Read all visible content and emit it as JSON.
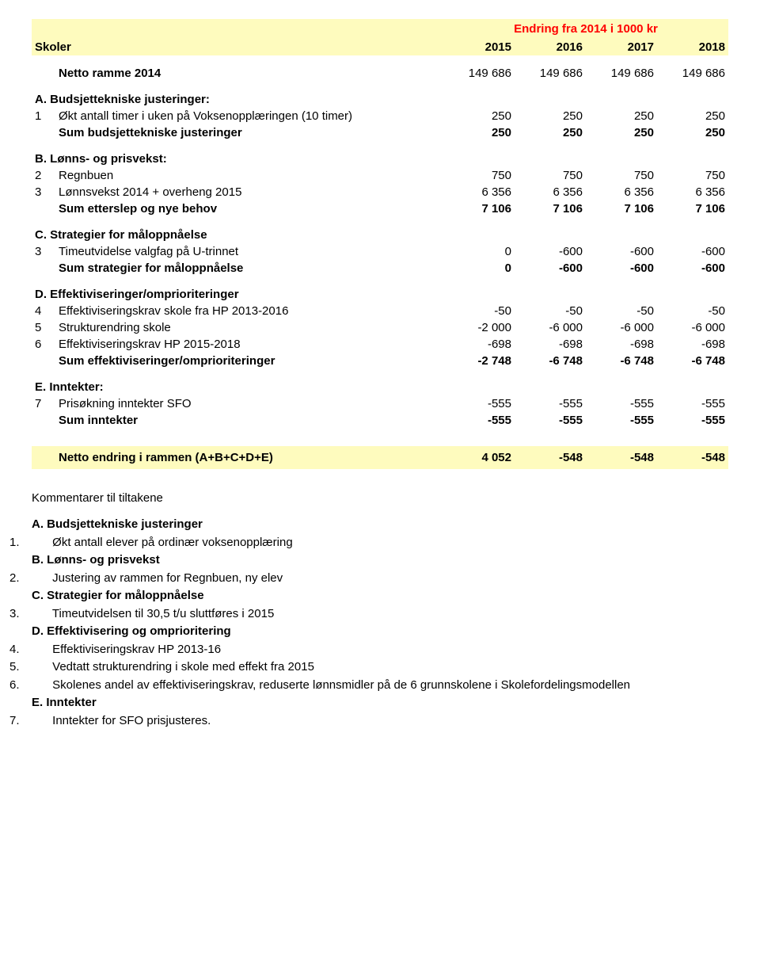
{
  "colors": {
    "band_bg": "#fefbbe",
    "overline_color": "#ff0000",
    "text": "#000000"
  },
  "fonts": {
    "family": "Arial",
    "size_pt": 11
  },
  "header": {
    "overline": "Endring fra 2014 i 1000 kr",
    "title": "Skoler",
    "years": [
      "2015",
      "2016",
      "2017",
      "2018"
    ]
  },
  "netto_ramme": {
    "label": "Netto ramme 2014",
    "values": [
      "149 686",
      "149 686",
      "149 686",
      "149 686"
    ]
  },
  "sectionA": {
    "heading": "A. Budsjettekniske justeringer:",
    "rows": [
      {
        "idx": "1",
        "label": "Økt antall timer i uken på Voksenopplæringen (10 timer)",
        "values": [
          "250",
          "250",
          "250",
          "250"
        ]
      }
    ],
    "sum": {
      "label": "Sum budsjettekniske justeringer",
      "values": [
        "250",
        "250",
        "250",
        "250"
      ]
    }
  },
  "sectionB": {
    "heading": "B. Lønns- og prisvekst:",
    "rows": [
      {
        "idx": "2",
        "label": "Regnbuen",
        "values": [
          "750",
          "750",
          "750",
          "750"
        ]
      },
      {
        "idx": "3",
        "label": "Lønnsvekst 2014 + overheng 2015",
        "values": [
          "6 356",
          "6 356",
          "6 356",
          "6 356"
        ]
      }
    ],
    "sum": {
      "label": "Sum etterslep og nye behov",
      "values": [
        "7 106",
        "7 106",
        "7 106",
        "7 106"
      ]
    }
  },
  "sectionC": {
    "heading": "C. Strategier for måloppnåelse",
    "rows": [
      {
        "idx": "3",
        "label": "Timeutvidelse valgfag på U-trinnet",
        "values": [
          "0",
          "-600",
          "-600",
          "-600"
        ]
      }
    ],
    "sum": {
      "label": "Sum strategier for måloppnåelse",
      "values": [
        "0",
        "-600",
        "-600",
        "-600"
      ]
    }
  },
  "sectionD": {
    "heading": "D. Effektiviseringer/omprioriteringer",
    "rows": [
      {
        "idx": "4",
        "label": "Effektiviseringskrav skole fra HP 2013-2016",
        "values": [
          "-50",
          "-50",
          "-50",
          "-50"
        ]
      },
      {
        "idx": "5",
        "label": "Strukturendring skole",
        "values": [
          "-2 000",
          "-6 000",
          "-6 000",
          "-6 000"
        ]
      },
      {
        "idx": "6",
        "label": "Effektiviseringskrav HP 2015-2018",
        "values": [
          "-698",
          "-698",
          "-698",
          "-698"
        ]
      }
    ],
    "sum": {
      "label": "Sum effektiviseringer/omprioriteringer",
      "values": [
        "-2 748",
        "-6 748",
        "-6 748",
        "-6 748"
      ]
    }
  },
  "sectionE": {
    "heading": "E. Inntekter:",
    "rows": [
      {
        "idx": "7",
        "label": "Prisøkning inntekter SFO",
        "values": [
          "-555",
          "-555",
          "-555",
          "-555"
        ]
      }
    ],
    "sum": {
      "label": "Sum inntekter",
      "values": [
        "-555",
        "-555",
        "-555",
        "-555"
      ]
    }
  },
  "netto_endring": {
    "label": "Netto endring i rammen (A+B+C+D+E)",
    "values": [
      "4 052",
      "-548",
      "-548",
      "-548"
    ]
  },
  "comments_title": "Kommentarer til tiltakene",
  "comments": [
    {
      "bold": true,
      "idx": "",
      "text": "A. Budsjettekniske justeringer"
    },
    {
      "bold": false,
      "idx": "1.",
      "text": "Økt antall elever på ordinær voksenopplæring"
    },
    {
      "bold": true,
      "idx": "",
      "text": "B. Lønns- og prisvekst"
    },
    {
      "bold": false,
      "idx": "2.",
      "text": "Justering av rammen for Regnbuen, ny elev"
    },
    {
      "bold": true,
      "idx": "",
      "text": "C. Strategier for måloppnåelse"
    },
    {
      "bold": false,
      "idx": "3.",
      "text": "Timeutvidelsen til 30,5 t/u sluttføres i 2015"
    },
    {
      "bold": true,
      "idx": "",
      "text": "D. Effektivisering og omprioritering"
    },
    {
      "bold": false,
      "idx": "4.",
      "text": "Effektiviseringskrav HP 2013-16"
    },
    {
      "bold": false,
      "idx": "5.",
      "text": "Vedtatt strukturendring i skole med effekt fra 2015"
    },
    {
      "bold": false,
      "idx": "6.",
      "text": "Skolenes andel av effektiviseringskrav, reduserte lønnsmidler på de 6 grunnskolene i Skolefordelingsmodellen"
    },
    {
      "bold": true,
      "idx": "",
      "text": "E. Inntekter"
    },
    {
      "bold": false,
      "idx": "7.",
      "text": "Inntekter for SFO prisjusteres."
    }
  ]
}
